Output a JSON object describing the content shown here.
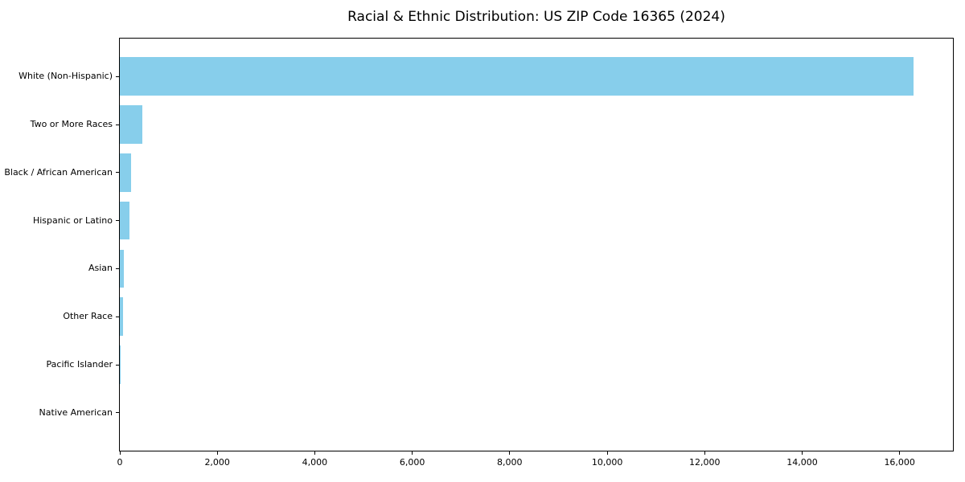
{
  "figure": {
    "background_color": "#ffffff",
    "axis_color": "#000000",
    "text_color": "#000000"
  },
  "chart_data": {
    "type": "bar",
    "orientation": "horizontal",
    "title": "Racial & Ethnic Distribution: US ZIP Code 16365 (2024)",
    "categories": [
      "White (Non-Hispanic)",
      "Two or More Races",
      "Black / African American",
      "Hispanic or Latino",
      "Asian",
      "Other Race",
      "Pacific Islander",
      "Native American"
    ],
    "values": [
      16280,
      455,
      235,
      205,
      88,
      60,
      12,
      0
    ],
    "bar_color": "#87CEEB",
    "xlabel": "",
    "ylabel": "",
    "xlim": [
      0,
      17094
    ],
    "x_ticks": [
      0,
      2000,
      4000,
      6000,
      8000,
      10000,
      12000,
      14000,
      16000
    ],
    "x_tick_labels": [
      "0",
      "2,000",
      "4,000",
      "6,000",
      "8,000",
      "10,000",
      "12,000",
      "14,000",
      "16,000"
    ],
    "grid": false,
    "legend": "none",
    "bar_height_fraction": 0.8
  }
}
